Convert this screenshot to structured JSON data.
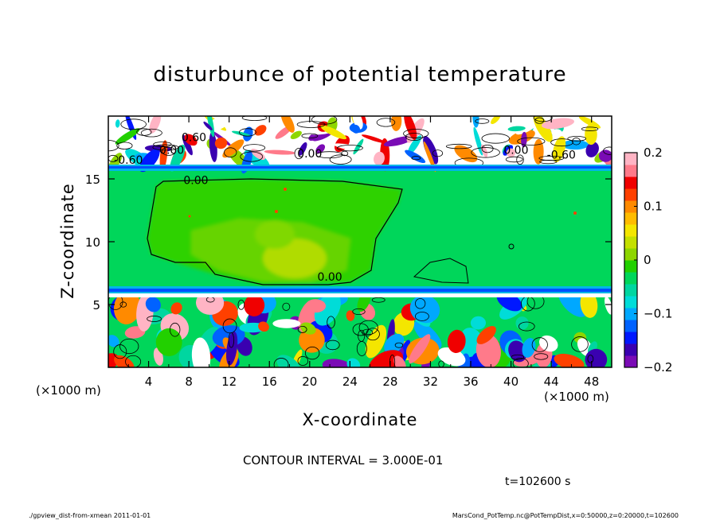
{
  "chart_data": {
    "type": "heatmap",
    "title": "disturbunce of potential temperature",
    "xlabel": "X-coordinate",
    "ylabel": "Z-coordinate",
    "x_unit_left": "(×1000 m)",
    "x_unit_right": "(×1000 m)",
    "xlim": [
      0,
      50
    ],
    "ylim": [
      0,
      20
    ],
    "xticks": [
      {
        "v": 4,
        "label": "4"
      },
      {
        "v": 8,
        "label": "8"
      },
      {
        "v": 12,
        "label": "12"
      },
      {
        "v": 16,
        "label": "16"
      },
      {
        "v": 20,
        "label": "20"
      },
      {
        "v": 24,
        "label": "24"
      },
      {
        "v": 28,
        "label": "28"
      },
      {
        "v": 32,
        "label": "32"
      },
      {
        "v": 36,
        "label": "36"
      },
      {
        "v": 40,
        "label": "40"
      },
      {
        "v": 44,
        "label": "44"
      },
      {
        "v": 48,
        "label": "48"
      }
    ],
    "yticks": [
      {
        "v": 5,
        "label": "5"
      },
      {
        "v": 10,
        "label": "10"
      },
      {
        "v": 15,
        "label": "15"
      }
    ],
    "colorbar": {
      "range": [
        -0.2,
        0.2
      ],
      "ticks": [
        {
          "v": 0.2,
          "label": "0.2"
        },
        {
          "v": 0.1,
          "label": "0.1"
        },
        {
          "v": 0,
          "label": "0"
        },
        {
          "v": -0.1,
          "label": "−0.1"
        },
        {
          "v": -0.2,
          "label": "−0.2"
        }
      ],
      "colors": [
        "#7a0bb5",
        "#3a00b0",
        "#0018ff",
        "#0062ff",
        "#00a8ff",
        "#00dcd8",
        "#00d6a0",
        "#00d65a",
        "#22d000",
        "#8ed600",
        "#c4e000",
        "#f4e600",
        "#ffbc00",
        "#ff8a00",
        "#ff4000",
        "#f00000",
        "#ff7a8a",
        "#ffb4c4"
      ]
    },
    "contour_labels": [
      {
        "x": 8.5,
        "y": 18.0,
        "label": "0.60"
      },
      {
        "x": 6.3,
        "y": 17.0,
        "label": "0.00"
      },
      {
        "x": 2.0,
        "y": 16.2,
        "label": "-0.60"
      },
      {
        "x": 20.0,
        "y": 16.7,
        "label": "0.00"
      },
      {
        "x": 40.5,
        "y": 17.0,
        "label": "0.00"
      },
      {
        "x": 45.0,
        "y": 16.6,
        "label": "-0.60"
      },
      {
        "x": 8.7,
        "y": 14.6,
        "label": "0.00"
      },
      {
        "x": 22.0,
        "y": 6.9,
        "label": "0.00"
      }
    ],
    "contour_interval": "CONTOUR INTERVAL = 3.000E-01",
    "time": "t=102600 s",
    "footer_left": "./gpview_dist-from-xmean   2011-01-01",
    "footer_right": "MarsCond_PotTemp.nc@PotTempDist,x=0:50000,z=0:20000,t=102600"
  }
}
